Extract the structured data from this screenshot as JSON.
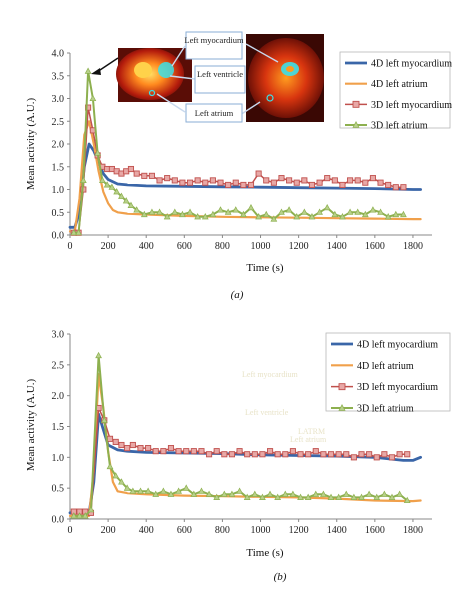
{
  "colors": {
    "myo4d": "#3a66a8",
    "atr4d": "#f0a04b",
    "myo3d": "#c0504d",
    "myo3d_marker": "#e8a8a6",
    "atr3d": "#8db04f",
    "atr3d_marker": "#b8d08a",
    "axis": "#888888",
    "callout_border": "#8aaed6"
  },
  "chart_data": [
    {
      "type": "line",
      "panel_label": "(a)",
      "xlabel": "Time (s)",
      "ylabel": "Mean activity (A.U.)",
      "xlim": [
        0,
        1900
      ],
      "ylim": [
        0,
        4.0
      ],
      "xticks": [
        0,
        200,
        400,
        600,
        800,
        1000,
        1200,
        1400,
        1600,
        1800
      ],
      "yticks": [
        "0.0",
        "0.5",
        "1.0",
        "1.5",
        "2.0",
        "2.5",
        "3.0",
        "3.5",
        "4.0"
      ],
      "legend_position": "top-right",
      "legend": [
        "4D left myocardium",
        "4D left atrium",
        "3D left myocardium",
        "3D left atrium"
      ],
      "inset_labels": [
        "Left myocardium",
        "Left ventricle",
        "Left atrium"
      ],
      "series": [
        {
          "name": "4D left myocardium",
          "x": [
            0,
            25,
            50,
            75,
            100,
            125,
            150,
            175,
            200,
            250,
            300,
            400,
            600,
            800,
            1000,
            1200,
            1400,
            1600,
            1800,
            1840
          ],
          "y": [
            0.17,
            0.17,
            0.5,
            1.5,
            2.0,
            1.85,
            1.6,
            1.35,
            1.22,
            1.12,
            1.1,
            1.08,
            1.07,
            1.06,
            1.05,
            1.04,
            1.03,
            1.02,
            1.0,
            1.0
          ]
        },
        {
          "name": "4D left atrium",
          "x": [
            0,
            25,
            50,
            75,
            100,
            125,
            150,
            175,
            200,
            225,
            250,
            300,
            400,
            600,
            800,
            1000,
            1200,
            1400,
            1600,
            1800,
            1840
          ],
          "y": [
            0.08,
            0.08,
            0.8,
            2.2,
            2.5,
            2.0,
            1.4,
            0.95,
            0.7,
            0.55,
            0.5,
            0.47,
            0.45,
            0.42,
            0.4,
            0.39,
            0.38,
            0.37,
            0.36,
            0.35,
            0.35
          ]
        },
        {
          "name": "3D left myocardium",
          "x": [
            20,
            45,
            70,
            95,
            120,
            145,
            170,
            195,
            220,
            245,
            270,
            295,
            320,
            350,
            390,
            430,
            470,
            510,
            550,
            590,
            630,
            670,
            710,
            750,
            790,
            830,
            870,
            910,
            950,
            990,
            1030,
            1070,
            1110,
            1150,
            1190,
            1230,
            1270,
            1310,
            1350,
            1390,
            1430,
            1470,
            1510,
            1550,
            1590,
            1630,
            1670,
            1710,
            1750
          ],
          "y": [
            0.05,
            0.05,
            1.0,
            2.8,
            2.3,
            1.75,
            1.5,
            1.45,
            1.45,
            1.4,
            1.35,
            1.4,
            1.45,
            1.35,
            1.3,
            1.3,
            1.2,
            1.25,
            1.2,
            1.15,
            1.15,
            1.2,
            1.15,
            1.2,
            1.15,
            1.1,
            1.15,
            1.1,
            1.1,
            1.35,
            1.2,
            1.15,
            1.25,
            1.2,
            1.15,
            1.2,
            1.1,
            1.15,
            1.25,
            1.2,
            1.1,
            1.2,
            1.2,
            1.15,
            1.25,
            1.15,
            1.1,
            1.05,
            1.05
          ]
        },
        {
          "name": "3D left atrium",
          "x": [
            20,
            45,
            70,
            95,
            120,
            145,
            170,
            195,
            220,
            245,
            270,
            295,
            320,
            350,
            390,
            430,
            470,
            510,
            550,
            590,
            630,
            670,
            710,
            750,
            790,
            830,
            870,
            910,
            950,
            990,
            1030,
            1070,
            1110,
            1150,
            1190,
            1230,
            1270,
            1310,
            1350,
            1390,
            1430,
            1470,
            1510,
            1550,
            1590,
            1630,
            1670,
            1710,
            1750
          ],
          "y": [
            0.05,
            0.05,
            1.2,
            3.6,
            3.0,
            1.8,
            1.2,
            1.1,
            1.05,
            0.95,
            0.85,
            0.75,
            0.65,
            0.55,
            0.45,
            0.5,
            0.5,
            0.4,
            0.5,
            0.45,
            0.5,
            0.4,
            0.4,
            0.45,
            0.55,
            0.5,
            0.55,
            0.45,
            0.6,
            0.4,
            0.45,
            0.35,
            0.5,
            0.55,
            0.4,
            0.5,
            0.4,
            0.5,
            0.6,
            0.45,
            0.4,
            0.5,
            0.5,
            0.45,
            0.55,
            0.5,
            0.4,
            0.45,
            0.45
          ]
        }
      ]
    },
    {
      "type": "line",
      "panel_label": "(b)",
      "xlabel": "Time (s)",
      "ylabel": "Mean activity (A.U.)",
      "xlim": [
        0,
        1900
      ],
      "ylim": [
        0,
        3.0
      ],
      "xticks": [
        0,
        200,
        400,
        600,
        800,
        1000,
        1200,
        1400,
        1600,
        1800
      ],
      "yticks": [
        "0.0",
        "0.5",
        "1.0",
        "1.5",
        "2.0",
        "2.5",
        "3.0"
      ],
      "legend_position": "top-right",
      "legend": [
        "4D left myocardium",
        "4D left atrium",
        "3D left myocardium",
        "3D left atrium"
      ],
      "faint_labels": [
        "Left myocardium",
        "Left ventricle",
        "LATRM",
        "Left atrium"
      ],
      "series": [
        {
          "name": "4D left myocardium",
          "x": [
            0,
            50,
            100,
            125,
            150,
            175,
            200,
            250,
            300,
            400,
            600,
            800,
            1000,
            1200,
            1400,
            1600,
            1750,
            1800,
            1840
          ],
          "y": [
            0.1,
            0.1,
            0.1,
            0.6,
            1.7,
            1.45,
            1.2,
            1.12,
            1.1,
            1.08,
            1.07,
            1.06,
            1.04,
            1.03,
            1.02,
            1.0,
            0.95,
            0.95,
            1.0
          ]
        },
        {
          "name": "4D left atrium",
          "x": [
            0,
            50,
            100,
            125,
            150,
            175,
            200,
            225,
            250,
            300,
            400,
            600,
            800,
            1000,
            1200,
            1400,
            1600,
            1800,
            1840
          ],
          "y": [
            0.05,
            0.05,
            0.05,
            0.8,
            2.35,
            1.8,
            1.1,
            0.6,
            0.45,
            0.42,
            0.4,
            0.38,
            0.37,
            0.36,
            0.35,
            0.33,
            0.3,
            0.29,
            0.3
          ]
        },
        {
          "name": "3D left myocardium",
          "x": [
            20,
            50,
            80,
            110,
            150,
            180,
            210,
            240,
            270,
            300,
            330,
            370,
            410,
            450,
            490,
            530,
            570,
            610,
            650,
            690,
            730,
            770,
            810,
            850,
            890,
            930,
            970,
            1010,
            1050,
            1090,
            1130,
            1170,
            1210,
            1250,
            1290,
            1330,
            1370,
            1410,
            1450,
            1490,
            1530,
            1570,
            1610,
            1650,
            1690,
            1730,
            1770
          ],
          "y": [
            0.12,
            0.12,
            0.12,
            0.1,
            1.8,
            1.6,
            1.3,
            1.25,
            1.2,
            1.15,
            1.2,
            1.15,
            1.15,
            1.1,
            1.1,
            1.15,
            1.1,
            1.1,
            1.1,
            1.1,
            1.05,
            1.1,
            1.05,
            1.05,
            1.1,
            1.05,
            1.05,
            1.05,
            1.1,
            1.05,
            1.05,
            1.1,
            1.05,
            1.05,
            1.1,
            1.05,
            1.05,
            1.05,
            1.05,
            1.0,
            1.05,
            1.05,
            1.0,
            1.05,
            1.0,
            1.05,
            1.05
          ]
        },
        {
          "name": "3D left atrium",
          "x": [
            20,
            50,
            80,
            110,
            150,
            180,
            210,
            240,
            270,
            300,
            330,
            370,
            410,
            450,
            490,
            530,
            570,
            610,
            650,
            690,
            730,
            770,
            810,
            850,
            890,
            930,
            970,
            1010,
            1050,
            1090,
            1130,
            1170,
            1210,
            1250,
            1290,
            1330,
            1370,
            1410,
            1450,
            1490,
            1530,
            1570,
            1610,
            1650,
            1690,
            1730,
            1770
          ],
          "y": [
            0.05,
            0.05,
            0.05,
            0.15,
            2.65,
            1.6,
            0.85,
            0.7,
            0.6,
            0.5,
            0.45,
            0.45,
            0.45,
            0.4,
            0.45,
            0.4,
            0.45,
            0.5,
            0.4,
            0.45,
            0.4,
            0.35,
            0.4,
            0.4,
            0.45,
            0.35,
            0.4,
            0.35,
            0.4,
            0.35,
            0.4,
            0.4,
            0.35,
            0.35,
            0.4,
            0.4,
            0.35,
            0.35,
            0.4,
            0.35,
            0.35,
            0.4,
            0.35,
            0.4,
            0.35,
            0.4,
            0.3
          ]
        }
      ]
    }
  ]
}
